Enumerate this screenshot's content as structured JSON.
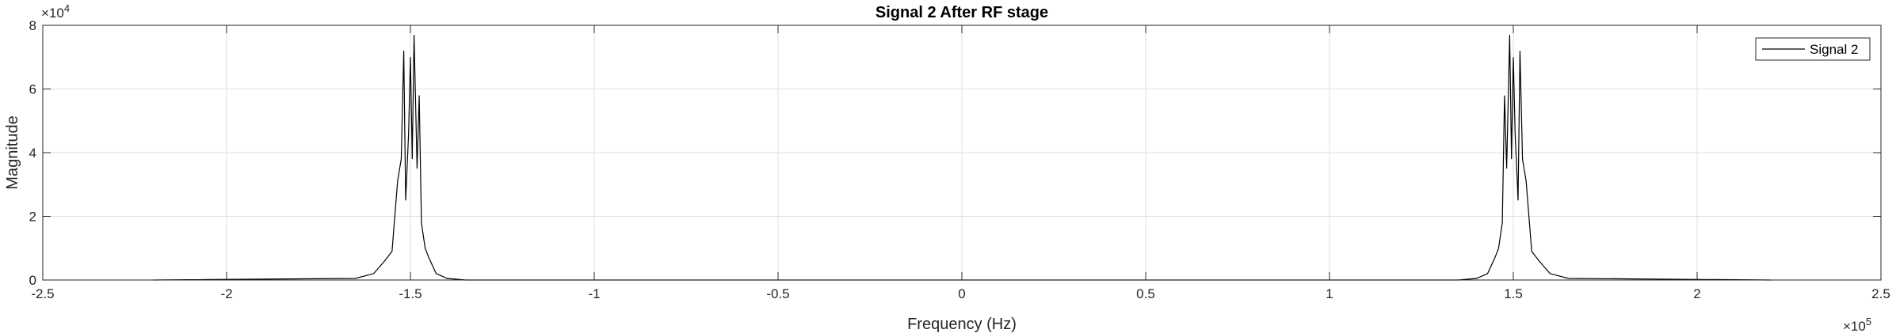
{
  "colors": {
    "axis": "#262626",
    "grid": "#dfdfdf",
    "signal": "#000000",
    "background": "#ffffff"
  },
  "chart_data": {
    "type": "line",
    "title": "Signal 2 After RF stage",
    "xlabel": "Frequency (Hz)",
    "ylabel": "Magnitude",
    "xlim": [
      -250000,
      250000
    ],
    "ylim": [
      0,
      80000
    ],
    "grid": true,
    "legend": {
      "placement": "top-right",
      "entries": [
        "Signal 2"
      ]
    },
    "x_multiplier": {
      "base": "×10",
      "exp": "5"
    },
    "y_multiplier": {
      "base": "×10",
      "exp": "4"
    },
    "xticks": [
      -250000,
      -200000,
      -150000,
      -100000,
      -50000,
      0,
      50000,
      100000,
      150000,
      200000,
      250000
    ],
    "xtick_labels": [
      "-2.5",
      "-2",
      "-1.5",
      "-1",
      "-0.5",
      "0",
      "0.5",
      "1",
      "1.5",
      "2",
      "2.5"
    ],
    "yticks": [
      0,
      20000,
      40000,
      60000,
      80000
    ],
    "ytick_labels": [
      "0",
      "2",
      "4",
      "6",
      "8"
    ],
    "series": [
      {
        "name": "Signal 2",
        "color": "#000000",
        "x": [
          -220000,
          -165000,
          -160000,
          -157000,
          -155000,
          -153500,
          -152500,
          -151800,
          -151300,
          -150500,
          -150000,
          -149500,
          -149000,
          -148200,
          -147600,
          -147000,
          -146000,
          -145000,
          -143000,
          -140000,
          -135000,
          135000,
          140000,
          143000,
          145000,
          146000,
          147000,
          147600,
          148200,
          149000,
          149500,
          150000,
          150500,
          151300,
          151800,
          152500,
          153500,
          155000,
          157000,
          160000,
          165000,
          220000
        ],
        "y": [
          0,
          500,
          2000,
          6000,
          9000,
          31000,
          38000,
          72000,
          25000,
          46000,
          70000,
          38000,
          77000,
          35000,
          58000,
          18000,
          10000,
          7000,
          2000,
          500,
          0,
          0,
          500,
          2000,
          7000,
          10000,
          18000,
          58000,
          35000,
          77000,
          38000,
          70000,
          46000,
          25000,
          72000,
          38000,
          31000,
          9000,
          6000,
          2000,
          500,
          0
        ]
      }
    ]
  }
}
